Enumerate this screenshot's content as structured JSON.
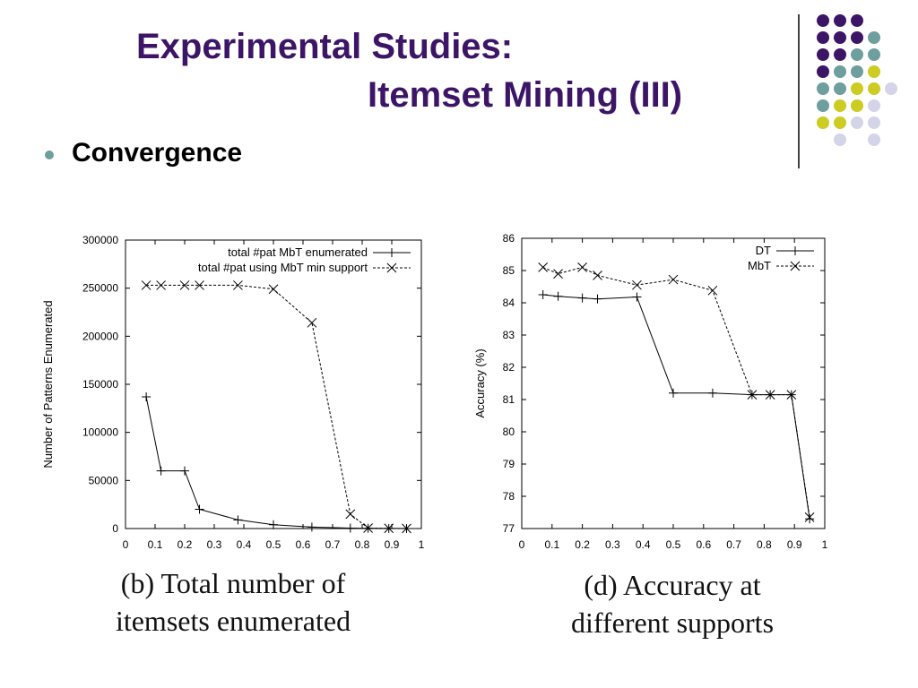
{
  "slide": {
    "title_line1": "Experimental Studies:",
    "title_line2": "Itemset Mining (III)",
    "bullet": "Convergence",
    "decor_colors": {
      "purple": "#3c1566",
      "teal": "#6e9e9e",
      "yellow": "#cccc22",
      "lavender": "#d4d4e8"
    }
  },
  "captions": {
    "left_line1": "(b) Total number of",
    "left_line2": "itemsets enumerated",
    "right_line1": "(d) Accuracy at",
    "right_line2": "different supports"
  },
  "chart_data": [
    {
      "type": "line",
      "xlabel": "",
      "ylabel": "Number of Patterns Enumerated",
      "xlim": [
        0,
        1
      ],
      "ylim": [
        0,
        300000
      ],
      "xticks": [
        "0",
        "0.1",
        "0.2",
        "0.3",
        "0.4",
        "0.5",
        "0.6",
        "0.7",
        "0.8",
        "0.9",
        "1"
      ],
      "yticks": [
        "0",
        "50000",
        "100000",
        "150000",
        "200000",
        "250000",
        "300000"
      ],
      "legend_position": "top-right",
      "grid": false,
      "series": [
        {
          "name": "total #pat MbT enumerated",
          "marker": "plus",
          "dash": "solid",
          "x": [
            0.07,
            0.12,
            0.2,
            0.25,
            0.38,
            0.5,
            0.63,
            0.76,
            0.82,
            0.89,
            0.95
          ],
          "y": [
            137000,
            60000,
            60000,
            20000,
            9000,
            4000,
            1500,
            500,
            200,
            100,
            50
          ]
        },
        {
          "name": "total #pat using MbT min support",
          "marker": "cross",
          "dash": "dashed",
          "x": [
            0.07,
            0.12,
            0.2,
            0.25,
            0.38,
            0.5,
            0.63,
            0.76,
            0.82,
            0.89,
            0.95
          ],
          "y": [
            253000,
            253000,
            253000,
            253000,
            253000,
            249000,
            214000,
            15000,
            500,
            200,
            100
          ]
        }
      ]
    },
    {
      "type": "line",
      "xlabel": "",
      "ylabel": "Accuracy (%)",
      "xlim": [
        0,
        1
      ],
      "ylim": [
        77,
        86
      ],
      "xticks": [
        "0",
        "0.1",
        "0.2",
        "0.3",
        "0.4",
        "0.5",
        "0.6",
        "0.7",
        "0.8",
        "0.9",
        "1"
      ],
      "yticks": [
        "77",
        "78",
        "79",
        "80",
        "81",
        "82",
        "83",
        "84",
        "85",
        "86"
      ],
      "legend_position": "top-right",
      "grid": false,
      "series": [
        {
          "name": "DT",
          "marker": "plus",
          "dash": "solid",
          "x": [
            0.07,
            0.12,
            0.2,
            0.25,
            0.38,
            0.5,
            0.63,
            0.76,
            0.82,
            0.89,
            0.95
          ],
          "y": [
            84.25,
            84.2,
            84.15,
            84.12,
            84.18,
            81.2,
            81.2,
            81.15,
            81.15,
            81.15,
            77.3
          ]
        },
        {
          "name": "MbT",
          "marker": "cross",
          "dash": "dashed",
          "x": [
            0.07,
            0.12,
            0.2,
            0.25,
            0.38,
            0.5,
            0.63,
            0.76,
            0.82,
            0.89,
            0.95
          ],
          "y": [
            85.1,
            84.9,
            85.1,
            84.85,
            84.55,
            84.72,
            84.38,
            81.15,
            81.15,
            81.15,
            77.35
          ]
        }
      ]
    }
  ]
}
